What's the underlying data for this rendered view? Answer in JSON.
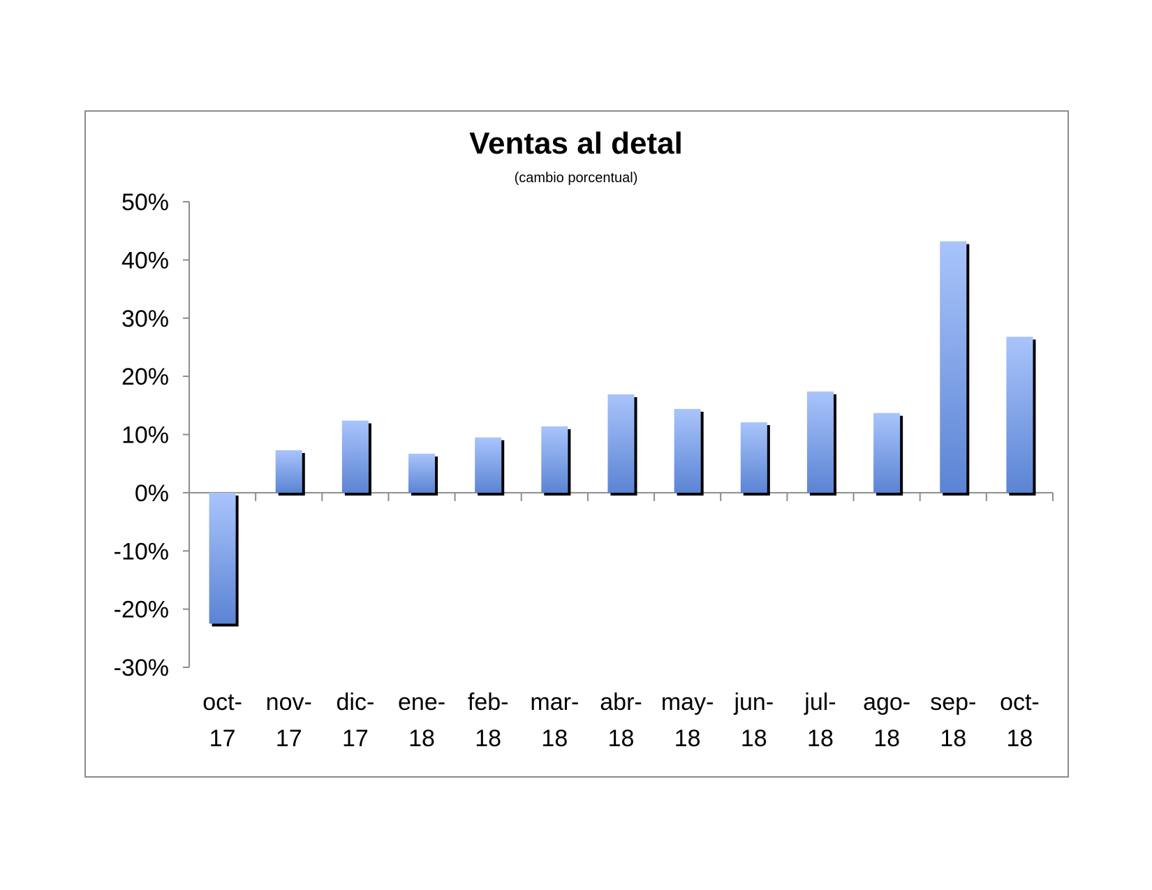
{
  "chart_data": {
    "type": "bar",
    "title": "Ventas al detal",
    "subtitle": "(cambio porcentual)",
    "xlabel": "",
    "ylabel": "",
    "categories": [
      [
        "oct-",
        "17"
      ],
      [
        "nov-",
        "17"
      ],
      [
        "dic-",
        "17"
      ],
      [
        "ene-",
        "18"
      ],
      [
        "feb-",
        "18"
      ],
      [
        "mar-",
        "18"
      ],
      [
        "abr-",
        "18"
      ],
      [
        "may-",
        "18"
      ],
      [
        "jun-",
        "18"
      ],
      [
        "jul-",
        "18"
      ],
      [
        "ago-",
        "18"
      ],
      [
        "sep-",
        "18"
      ],
      [
        "oct-",
        "18"
      ]
    ],
    "values": [
      -22.5,
      7.3,
      12.4,
      6.7,
      9.5,
      11.4,
      16.9,
      14.4,
      12.1,
      17.4,
      13.7,
      43.2,
      26.8
    ],
    "ylim": [
      -30,
      50
    ],
    "yticks": [
      50,
      40,
      30,
      20,
      10,
      0,
      -10,
      -20,
      -30
    ],
    "ytick_labels": [
      "50%",
      "40%",
      "30%",
      "20%",
      "10%",
      "0%",
      "-10%",
      "-20%",
      "-30%"
    ],
    "grid": false,
    "legend": "none",
    "colors": {
      "bar_top": "#a9c4fb",
      "bar_bottom": "#5b84d4",
      "shadow": "#000000",
      "axis": "#8c8c8c"
    }
  }
}
